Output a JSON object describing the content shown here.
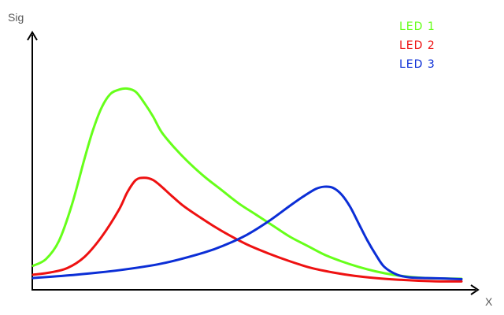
{
  "chart_data": {
    "type": "line",
    "ylabel": "Sig",
    "xlabel": "X",
    "xlim": [
      0,
      100
    ],
    "ylim": [
      0,
      100
    ],
    "grid": false,
    "axis_ticks": false,
    "legend_position": "top-right",
    "series": [
      {
        "name": "LED 1",
        "color": "#66ff1a",
        "x": [
          0,
          3,
          6,
          9,
          12,
          14,
          16,
          18,
          20,
          22,
          24,
          26,
          28,
          30,
          33,
          36,
          40,
          44,
          48,
          52,
          56,
          60,
          64,
          68,
          72,
          76,
          80,
          84,
          88,
          92,
          96,
          100
        ],
        "y": [
          9,
          12,
          20,
          36,
          57,
          70,
          80,
          86,
          88,
          88.5,
          87,
          82,
          76,
          69,
          62,
          56,
          49,
          43,
          37,
          32,
          27,
          22,
          18,
          14,
          11,
          8.5,
          6.5,
          5,
          4,
          3.5,
          3.3,
          3.2
        ]
      },
      {
        "name": "LED 2",
        "color": "#ee1111",
        "x": [
          0,
          4,
          8,
          12,
          16,
          20,
          22,
          24,
          26,
          28,
          30,
          32,
          35,
          38,
          42,
          46,
          50,
          55,
          60,
          65,
          70,
          75,
          80,
          85,
          90,
          95,
          100
        ],
        "y": [
          5,
          6,
          8,
          13,
          22,
          34,
          42,
          47.5,
          48.5,
          47.5,
          44.5,
          41,
          36,
          32,
          27,
          22.5,
          18.5,
          14.5,
          11,
          8,
          6,
          4.5,
          3.5,
          2.8,
          2.3,
          2,
          2
        ]
      },
      {
        "name": "LED 3",
        "color": "#0b2ed6",
        "x": [
          0,
          10,
          20,
          30,
          40,
          45,
          50,
          55,
          60,
          63,
          66,
          68,
          70,
          72,
          74,
          76,
          78,
          80,
          82,
          85,
          88,
          92,
          96,
          100
        ],
        "y": [
          3.5,
          5,
          7,
          10,
          15,
          18.5,
          23,
          29,
          36,
          40,
          43.5,
          44.5,
          44,
          41,
          35.5,
          28,
          20.5,
          14,
          8.5,
          5,
          3.8,
          3.5,
          3.3,
          3
        ]
      }
    ]
  }
}
